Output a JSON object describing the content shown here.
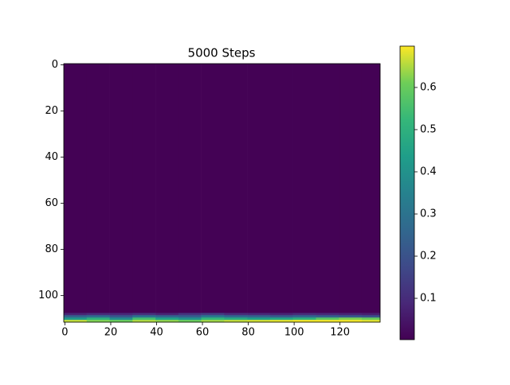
{
  "chart_data": {
    "type": "heatmap",
    "title": "5000 Steps",
    "colormap": "viridis",
    "x_edges": [
      -0.5,
      9.5,
      19.5,
      29.5,
      39.5,
      49.5,
      59.5,
      69.5,
      79.5,
      89.5,
      99.5,
      109.5,
      119.5,
      129.5,
      137.5
    ],
    "y_edges": [
      -0.5,
      107.5,
      108.5,
      109.5,
      110.5,
      111.5
    ],
    "z": [
      [
        0.005,
        0.005,
        0.005,
        0.005,
        0.005,
        0.005,
        0.005,
        0.005,
        0.005,
        0.005,
        0.005,
        0.005,
        0.005,
        0.005
      ],
      [
        0.08,
        0.1,
        0.09,
        0.11,
        0.08,
        0.12,
        0.14,
        0.1,
        0.09,
        0.08,
        0.1,
        0.09,
        0.08,
        0.07
      ],
      [
        0.25,
        0.28,
        0.22,
        0.3,
        0.26,
        0.24,
        0.32,
        0.27,
        0.25,
        0.23,
        0.26,
        0.24,
        0.22,
        0.2
      ],
      [
        0.42,
        0.5,
        0.38,
        0.55,
        0.45,
        0.4,
        0.52,
        0.48,
        0.44,
        0.46,
        0.5,
        0.58,
        0.62,
        0.6
      ],
      [
        0.66,
        0.62,
        0.6,
        0.65,
        0.63,
        0.6,
        0.64,
        0.66,
        0.67,
        0.68,
        0.69,
        0.69,
        0.69,
        0.68
      ]
    ],
    "xlim": [
      -0.5,
      137.5
    ],
    "ylim": [
      111.5,
      -0.5
    ],
    "xticks": [
      0,
      20,
      40,
      60,
      80,
      100,
      120
    ],
    "yticks": [
      0,
      20,
      40,
      60,
      80,
      100
    ],
    "clim": [
      0.002,
      0.698
    ],
    "cticks": [
      0.1,
      0.2,
      0.3,
      0.4,
      0.5,
      0.6
    ]
  }
}
